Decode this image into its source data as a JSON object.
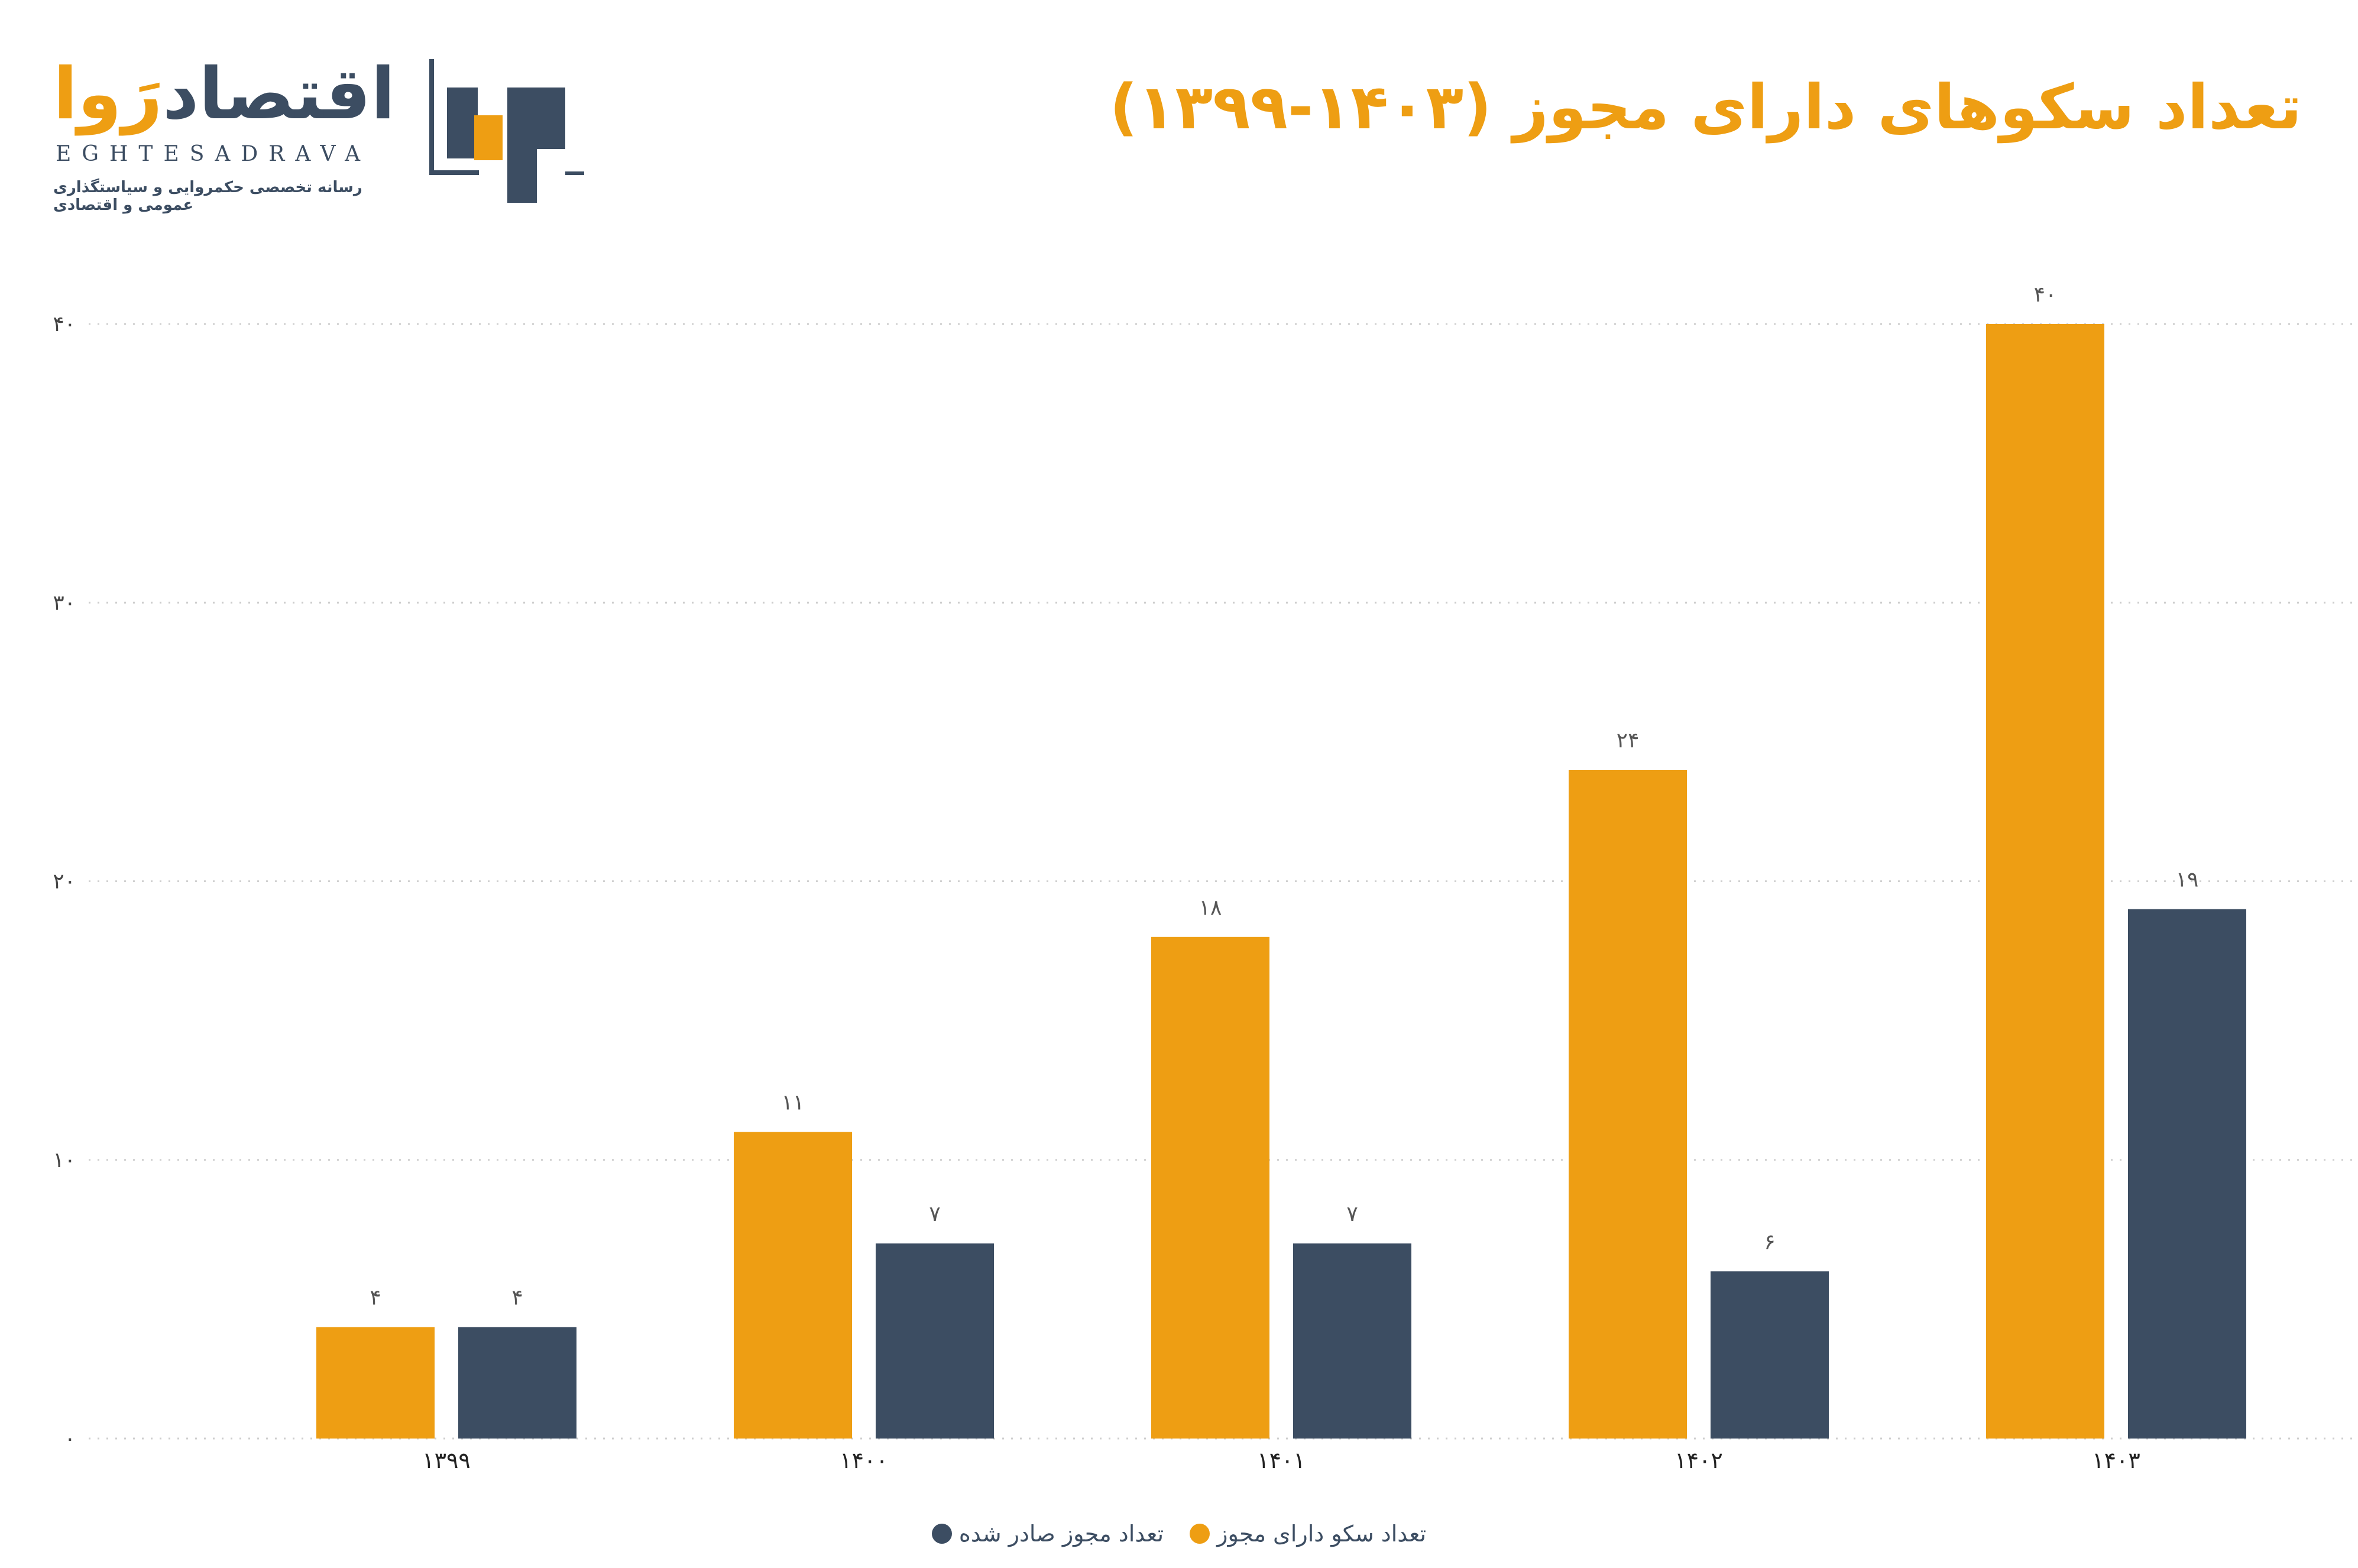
{
  "header": {
    "title": "تعداد سکوهای دارای مجوز  (۱۴۰۳-۱۳۹۹)"
  },
  "brand": {
    "name_part1": "اقتصاد",
    "name_part2": "رَوا",
    "latin": "EGHTESADRAVA",
    "tagline": "رسانه تخصصی حکمروایی و سیاستگذاری عمومی و اقتصادی",
    "colors": {
      "primary": "#3c4d62",
      "accent": "#ee9e13"
    }
  },
  "chart_data": {
    "type": "bar",
    "title": "تعداد سکوهای دارای مجوز  (۱۴۰۳-۱۳۹۹)",
    "xlabel": "",
    "ylabel": "",
    "categories": [
      "۱۳۹۹",
      "۱۴۰۰",
      "۱۴۰۱",
      "۱۴۰۲",
      "۱۴۰۳"
    ],
    "series": [
      {
        "name": "تعداد سکو دارای مجوز",
        "color": "#ee9e13",
        "values": [
          4,
          11,
          18,
          24,
          40
        ],
        "labels": [
          "۴",
          "۱۱",
          "۱۸",
          "۲۴",
          "۴۰"
        ]
      },
      {
        "name": "تعداد مجوز صادر شده",
        "color": "#3c4d62",
        "values": [
          4,
          7,
          7,
          6,
          19
        ],
        "labels": [
          "۴",
          "۷",
          "۷",
          "۶",
          "۱۹"
        ]
      }
    ],
    "ylim": [
      0,
      40
    ],
    "yticks": [
      0,
      10,
      20,
      30,
      40
    ],
    "ytick_labels": [
      "۰",
      "۱۰",
      "۲۰",
      "۳۰",
      "۴۰"
    ],
    "grid": true,
    "legend_position": "bottom-center"
  }
}
